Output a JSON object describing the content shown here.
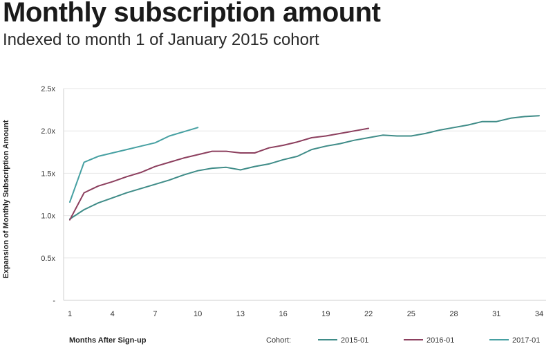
{
  "chart_data": {
    "type": "line",
    "title": "Monthly subscription amount",
    "subtitle": "Indexed to month 1 of January 2015 cohort",
    "xlabel": "Months After Sign-up",
    "ylabel": "Expansion of Monthly Subscription Amount",
    "xlim": [
      1,
      34
    ],
    "ylim": [
      0,
      2.5
    ],
    "x_ticks": [
      1,
      4,
      7,
      10,
      13,
      16,
      19,
      22,
      25,
      28,
      31,
      34
    ],
    "y_ticks": [
      {
        "value": 0,
        "label": "-"
      },
      {
        "value": 0.5,
        "label": "0.5x"
      },
      {
        "value": 1.0,
        "label": "1.0x"
      },
      {
        "value": 1.5,
        "label": "1.5x"
      },
      {
        "value": 2.0,
        "label": "2.0x"
      },
      {
        "value": 2.5,
        "label": "2.5x"
      }
    ],
    "legend_title": "Cohort:",
    "legend_position": "bottom-right",
    "series": [
      {
        "name": "2015-01",
        "color": "#3f8c88",
        "x": [
          1,
          2,
          3,
          4,
          5,
          6,
          7,
          8,
          9,
          10,
          11,
          12,
          13,
          14,
          15,
          16,
          17,
          18,
          19,
          20,
          21,
          22,
          23,
          24,
          25,
          26,
          27,
          28,
          29,
          30,
          31,
          32,
          33,
          34
        ],
        "values": [
          0.96,
          1.07,
          1.15,
          1.21,
          1.27,
          1.32,
          1.37,
          1.42,
          1.48,
          1.53,
          1.56,
          1.57,
          1.54,
          1.58,
          1.61,
          1.66,
          1.7,
          1.78,
          1.82,
          1.85,
          1.89,
          1.92,
          1.95,
          1.94,
          1.94,
          1.97,
          2.01,
          2.04,
          2.07,
          2.11,
          2.11,
          2.15,
          2.17,
          2.18
        ]
      },
      {
        "name": "2016-01",
        "color": "#8c3f5e",
        "x": [
          1,
          2,
          3,
          4,
          5,
          6,
          7,
          8,
          9,
          10,
          11,
          12,
          13,
          14,
          15,
          16,
          17,
          18,
          19,
          20,
          21,
          22
        ],
        "values": [
          0.95,
          1.27,
          1.35,
          1.4,
          1.46,
          1.51,
          1.58,
          1.63,
          1.68,
          1.72,
          1.76,
          1.76,
          1.74,
          1.74,
          1.8,
          1.83,
          1.87,
          1.92,
          1.94,
          1.97,
          2.0,
          2.03
        ]
      },
      {
        "name": "2017-01",
        "color": "#46a0a2",
        "x": [
          1,
          2,
          3,
          4,
          5,
          6,
          7,
          8,
          9,
          10
        ],
        "values": [
          1.16,
          1.63,
          1.7,
          1.74,
          1.78,
          1.82,
          1.86,
          1.94,
          1.99,
          2.04
        ]
      }
    ]
  }
}
